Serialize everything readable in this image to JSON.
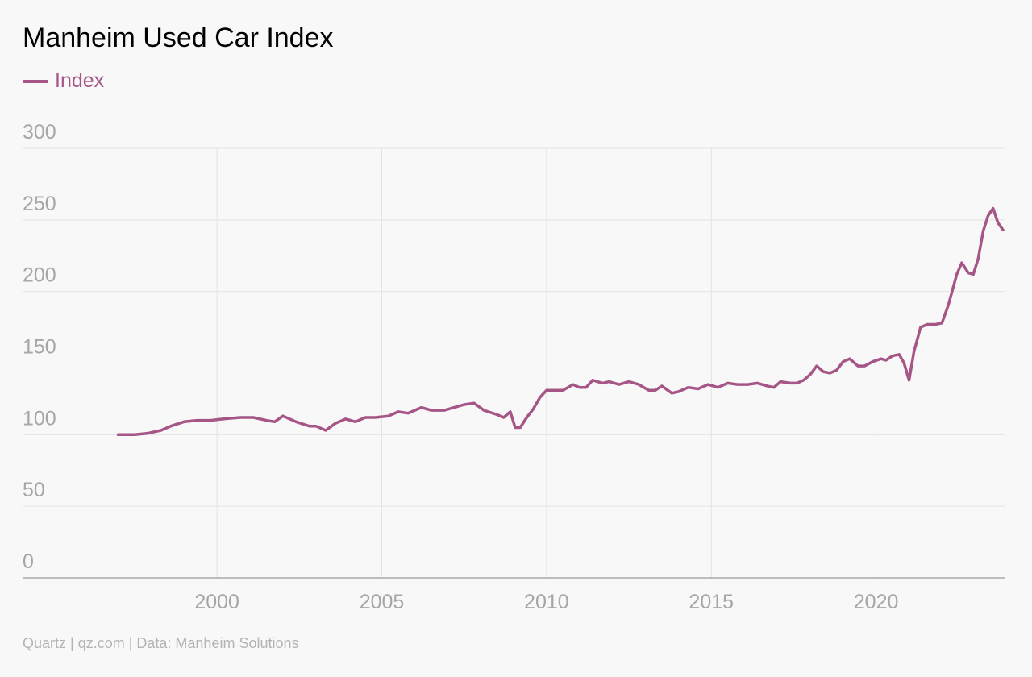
{
  "colors": {
    "series": "#a65686",
    "grid": "#e3e3e3",
    "axis": "#a9a9a9",
    "tick_text": "#a6a6a6"
  },
  "source": "Quartz | qz.com | Data: Manheim Solutions",
  "chart_data": {
    "type": "line",
    "title": "Manheim Used Car Index",
    "xlabel": "",
    "ylabel": "",
    "xlim": [
      1994.1,
      2023.9
    ],
    "ylim": [
      0,
      300
    ],
    "y_ticks": [
      0,
      50,
      100,
      150,
      200,
      250,
      300
    ],
    "x_ticks": [
      2000,
      2005,
      2010,
      2015,
      2020
    ],
    "grid": true,
    "legend": "top-left",
    "series": [
      {
        "name": "Index",
        "points": [
          [
            1997.0,
            100
          ],
          [
            1997.5,
            100
          ],
          [
            1997.9,
            101
          ],
          [
            1998.3,
            103
          ],
          [
            1998.6,
            106
          ],
          [
            1999.0,
            109
          ],
          [
            1999.4,
            110
          ],
          [
            1999.8,
            110
          ],
          [
            2000.2,
            111
          ],
          [
            2000.7,
            112
          ],
          [
            2001.1,
            112
          ],
          [
            2001.5,
            110
          ],
          [
            2001.75,
            109
          ],
          [
            2002.0,
            113
          ],
          [
            2002.4,
            109
          ],
          [
            2002.8,
            106
          ],
          [
            2003.0,
            106
          ],
          [
            2003.3,
            103
          ],
          [
            2003.6,
            108
          ],
          [
            2003.9,
            111
          ],
          [
            2004.2,
            109
          ],
          [
            2004.5,
            112
          ],
          [
            2004.8,
            112
          ],
          [
            2005.2,
            113
          ],
          [
            2005.5,
            116
          ],
          [
            2005.8,
            115
          ],
          [
            2006.2,
            119
          ],
          [
            2006.5,
            117
          ],
          [
            2006.9,
            117
          ],
          [
            2007.2,
            119
          ],
          [
            2007.5,
            121
          ],
          [
            2007.8,
            122
          ],
          [
            2008.1,
            117
          ],
          [
            2008.5,
            114
          ],
          [
            2008.7,
            112
          ],
          [
            2008.9,
            116
          ],
          [
            2009.05,
            105
          ],
          [
            2009.2,
            105
          ],
          [
            2009.4,
            112
          ],
          [
            2009.6,
            118
          ],
          [
            2009.8,
            126
          ],
          [
            2010.0,
            131
          ],
          [
            2010.3,
            131
          ],
          [
            2010.5,
            131
          ],
          [
            2010.8,
            135
          ],
          [
            2011.0,
            133
          ],
          [
            2011.2,
            133
          ],
          [
            2011.4,
            138
          ],
          [
            2011.7,
            136
          ],
          [
            2011.9,
            137
          ],
          [
            2012.2,
            135
          ],
          [
            2012.5,
            137
          ],
          [
            2012.8,
            135
          ],
          [
            2013.1,
            131
          ],
          [
            2013.3,
            131
          ],
          [
            2013.5,
            134
          ],
          [
            2013.8,
            129
          ],
          [
            2014.0,
            130
          ],
          [
            2014.3,
            133
          ],
          [
            2014.6,
            132
          ],
          [
            2014.9,
            135
          ],
          [
            2015.2,
            133
          ],
          [
            2015.5,
            136
          ],
          [
            2015.8,
            135
          ],
          [
            2016.1,
            135
          ],
          [
            2016.4,
            136
          ],
          [
            2016.7,
            134
          ],
          [
            2016.9,
            133
          ],
          [
            2017.1,
            137
          ],
          [
            2017.4,
            136
          ],
          [
            2017.6,
            136
          ],
          [
            2017.8,
            138
          ],
          [
            2018.0,
            142
          ],
          [
            2018.2,
            148
          ],
          [
            2018.4,
            144
          ],
          [
            2018.6,
            143
          ],
          [
            2018.8,
            145
          ],
          [
            2019.0,
            151
          ],
          [
            2019.2,
            153
          ],
          [
            2019.45,
            148
          ],
          [
            2019.65,
            148
          ],
          [
            2019.9,
            151
          ],
          [
            2020.15,
            153
          ],
          [
            2020.3,
            152
          ],
          [
            2020.5,
            155
          ],
          [
            2020.7,
            156
          ],
          [
            2020.85,
            150
          ],
          [
            2021.0,
            138
          ],
          [
            2021.15,
            158
          ],
          [
            2021.35,
            175
          ],
          [
            2021.55,
            177
          ],
          [
            2021.8,
            177
          ],
          [
            2022.0,
            178
          ],
          [
            2022.2,
            191
          ],
          [
            2022.45,
            212
          ],
          [
            2022.6,
            220
          ],
          [
            2022.8,
            213
          ],
          [
            2022.95,
            212
          ],
          [
            2023.1,
            223
          ],
          [
            2023.25,
            242
          ],
          [
            2023.4,
            253
          ],
          [
            2023.55,
            258
          ],
          [
            2023.7,
            248
          ],
          [
            2023.85,
            243
          ]
        ]
      }
    ]
  }
}
